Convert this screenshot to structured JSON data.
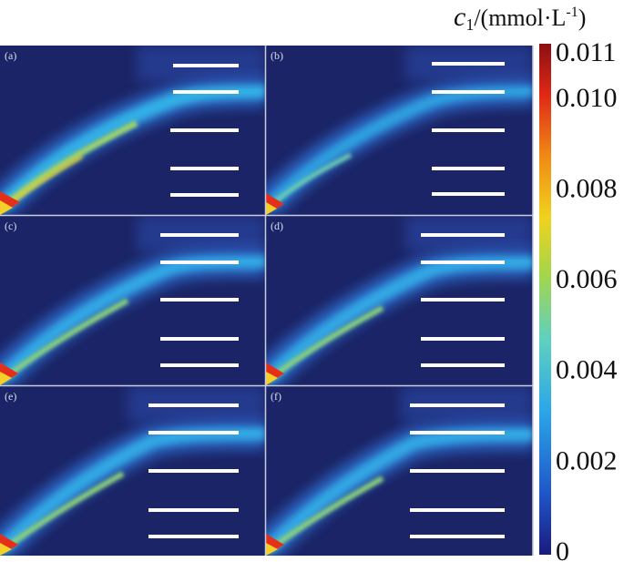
{
  "colorbar": {
    "title_var": "c",
    "title_sub": "1",
    "title_unit": "/(mmol·L",
    "title_sup": "-1",
    "title_close": ")",
    "ticks": [
      "0.011",
      "0.010",
      "0.008",
      "0.006",
      "0.004",
      "0.002",
      "0"
    ],
    "tick_values": [
      0.011,
      0.01,
      0.008,
      0.006,
      0.004,
      0.002,
      0
    ],
    "range": [
      0,
      0.011
    ],
    "colors": [
      "#1a1a7e",
      "#1f56c8",
      "#2ba6e8",
      "#5fd0c0",
      "#a6d54a",
      "#f0d21e",
      "#f08a14",
      "#e02816",
      "#8a0f12"
    ]
  },
  "panels": [
    {
      "label": "(a)",
      "variant": 0
    },
    {
      "label": "(b)",
      "variant": 1
    },
    {
      "label": "(c)",
      "variant": 2
    },
    {
      "label": "(d)",
      "variant": 3
    },
    {
      "label": "(e)",
      "variant": 4
    },
    {
      "label": "(f)",
      "variant": 5
    }
  ],
  "colors": {
    "background": "#1b2466",
    "electrode": "#ffffff",
    "grid_line": "#c9cde0"
  }
}
